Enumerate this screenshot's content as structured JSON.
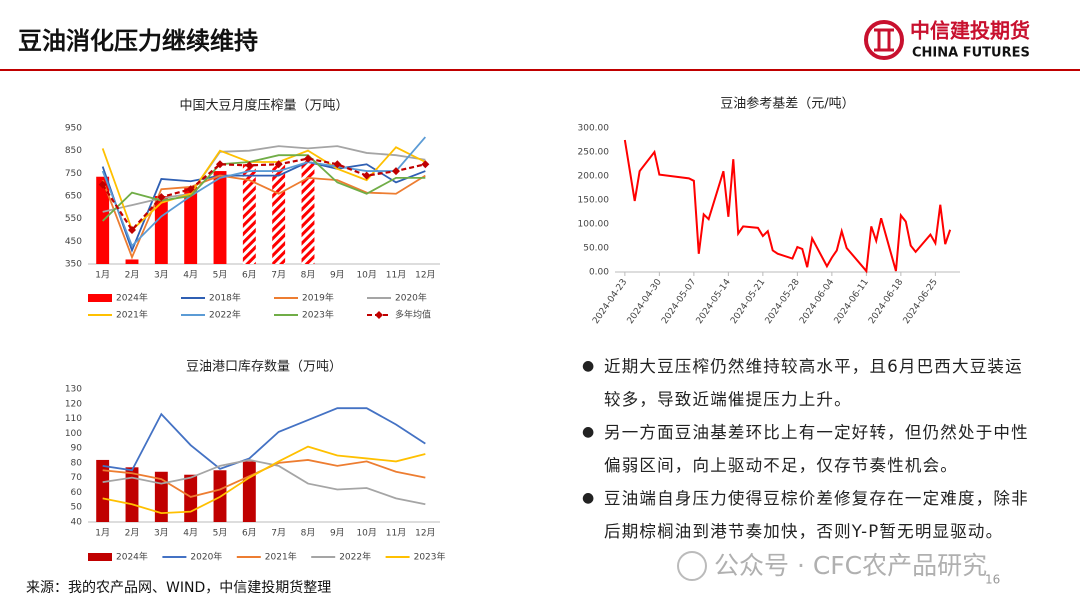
{
  "header": {
    "title": "豆油消化压力继续维持",
    "logo_cn": "中信建投期货",
    "logo_en": "CHINA FUTURES"
  },
  "chart_data": [
    {
      "type": "combo",
      "title": "中国大豆月度压榨量（万吨）",
      "categories": [
        "1月",
        "2月",
        "3月",
        "4月",
        "5月",
        "6月",
        "7月",
        "8月",
        "9月",
        "10月",
        "11月",
        "12月"
      ],
      "ylim": [
        350,
        950
      ],
      "yticks": [
        350,
        450,
        550,
        650,
        750,
        850,
        950
      ],
      "series": [
        {
          "name": "2024年",
          "kind": "bar",
          "color": "#ff0000",
          "values": [
            735,
            370,
            650,
            690,
            760,
            790,
            790,
            810,
            null,
            null,
            null,
            null
          ],
          "hatched": [
            false,
            false,
            false,
            false,
            false,
            true,
            true,
            true,
            false,
            false,
            false,
            false
          ]
        },
        {
          "name": "2018年",
          "kind": "line",
          "color": "#2f5fb3",
          "values": [
            780,
            410,
            725,
            715,
            740,
            740,
            740,
            800,
            770,
            790,
            710,
            760
          ]
        },
        {
          "name": "2019年",
          "kind": "line",
          "color": "#ed7d31",
          "values": [
            720,
            380,
            680,
            690,
            740,
            720,
            660,
            730,
            720,
            665,
            660,
            740
          ]
        },
        {
          "name": "2020年",
          "kind": "line",
          "color": "#a5a5a5",
          "values": [
            580,
            610,
            640,
            660,
            845,
            850,
            870,
            860,
            870,
            840,
            830,
            810
          ]
        },
        {
          "name": "2021年",
          "kind": "line",
          "color": "#ffc000",
          "values": [
            860,
            500,
            620,
            660,
            850,
            800,
            800,
            850,
            770,
            720,
            865,
            800
          ]
        },
        {
          "name": "2022年",
          "kind": "line",
          "color": "#5b9bd5",
          "values": [
            760,
            430,
            560,
            650,
            730,
            760,
            760,
            800,
            780,
            760,
            760,
            910
          ]
        },
        {
          "name": "2023年",
          "kind": "line",
          "color": "#70ad47",
          "values": [
            540,
            665,
            630,
            650,
            790,
            800,
            830,
            830,
            710,
            660,
            730,
            730
          ]
        },
        {
          "name": "多年均值",
          "kind": "line",
          "color": "#c00000",
          "dash": true,
          "marker": "diamond",
          "values": [
            700,
            500,
            645,
            680,
            790,
            785,
            790,
            815,
            790,
            740,
            760,
            790
          ]
        }
      ]
    },
    {
      "type": "line",
      "title": "豆油参考基差（元/吨）",
      "color": "#ff0000",
      "x": [
        "2024-04-23",
        "2024-04-25",
        "2024-04-26",
        "2024-04-29",
        "2024-04-30",
        "2024-05-06",
        "2024-05-07",
        "2024-05-08",
        "2024-05-09",
        "2024-05-10",
        "2024-05-13",
        "2024-05-14",
        "2024-05-15",
        "2024-05-16",
        "2024-05-17",
        "2024-05-20",
        "2024-05-21",
        "2024-05-22",
        "2024-05-23",
        "2024-05-24",
        "2024-05-27",
        "2024-05-28",
        "2024-05-29",
        "2024-05-30",
        "2024-05-31",
        "2024-06-03",
        "2024-06-04",
        "2024-06-05",
        "2024-06-06",
        "2024-06-07",
        "2024-06-11",
        "2024-06-12",
        "2024-06-13",
        "2024-06-14",
        "2024-06-17",
        "2024-06-18",
        "2024-06-19",
        "2024-06-20",
        "2024-06-21",
        "2024-06-24",
        "2024-06-25",
        "2024-06-26",
        "2024-06-27",
        "2024-06-28"
      ],
      "values": [
        275,
        148,
        210,
        250,
        203,
        195,
        190,
        38,
        120,
        110,
        210,
        115,
        235,
        80,
        95,
        92,
        75,
        85,
        45,
        38,
        28,
        52,
        48,
        10,
        70,
        12,
        30,
        45,
        85,
        50,
        2,
        95,
        65,
        112,
        2,
        118,
        105,
        55,
        42,
        78,
        60,
        140,
        58,
        88
      ],
      "xlim": [
        "2024-04-21",
        "2024-06-30"
      ],
      "xticks": [
        "2024-04-23",
        "2024-04-30",
        "2024-05-07",
        "2024-05-14",
        "2024-05-21",
        "2024-05-28",
        "2024-06-04",
        "2024-06-11",
        "2024-06-18",
        "2024-06-25"
      ],
      "ylim": [
        0,
        300
      ],
      "yticks": [
        {
          "value": 0,
          "label": "0.00"
        },
        {
          "value": 50,
          "label": "50.00"
        },
        {
          "value": 100,
          "label": "100.00"
        },
        {
          "value": 150,
          "label": "150.00"
        },
        {
          "value": 200,
          "label": "200.00"
        },
        {
          "value": 250,
          "label": "250.00"
        },
        {
          "value": 300,
          "label": "300.00"
        }
      ]
    },
    {
      "type": "combo",
      "title": "豆油港口库存数量（万吨）",
      "categories": [
        "1月",
        "2月",
        "3月",
        "4月",
        "5月",
        "6月",
        "7月",
        "8月",
        "9月",
        "10月",
        "11月",
        "12月"
      ],
      "ylim": [
        40,
        130
      ],
      "yticks": [
        40,
        50,
        60,
        70,
        80,
        90,
        100,
        110,
        120,
        130
      ],
      "series": [
        {
          "name": "2024年",
          "kind": "bar",
          "color": "#c00000",
          "values": [
            82,
            77,
            74,
            72,
            75,
            81,
            null,
            null,
            null,
            null,
            null,
            null
          ]
        },
        {
          "name": "2020年",
          "kind": "line",
          "color": "#4472c4",
          "values": [
            78,
            75,
            113,
            92,
            76,
            83,
            101,
            109,
            117,
            117,
            106,
            93
          ]
        },
        {
          "name": "2021年",
          "kind": "line",
          "color": "#ed7d31",
          "values": [
            75,
            73,
            69,
            57,
            62,
            71,
            80,
            82,
            78,
            81,
            74,
            70
          ]
        },
        {
          "name": "2022年",
          "kind": "line",
          "color": "#a5a5a5",
          "values": [
            67,
            70,
            66,
            70,
            78,
            82,
            78,
            66,
            62,
            63,
            56,
            52
          ]
        },
        {
          "name": "2023年",
          "kind": "line",
          "color": "#ffc000",
          "values": [
            56,
            52,
            46,
            47,
            57,
            70,
            81,
            91,
            85,
            83,
            81,
            86
          ]
        }
      ]
    }
  ],
  "bullets": [
    "近期大豆压榨仍然维持较高水平，且6月巴西大豆装运较多，导致近端催提压力上升。",
    "另一方面豆油基差环比上有一定好转，但仍然处于中性偏弱区间，向上驱动不足，仅存节奏性机会。",
    "豆油端自身压力使得豆棕价差修复存在一定难度，除非后期棕榈油到港节奏加快，否则Y-P暂无明显驱动。"
  ],
  "source": "来源：我的农产品网、WIND，中信建投期货整理",
  "page_number": "16",
  "watermark": "公众号 · CFC农产品研究"
}
